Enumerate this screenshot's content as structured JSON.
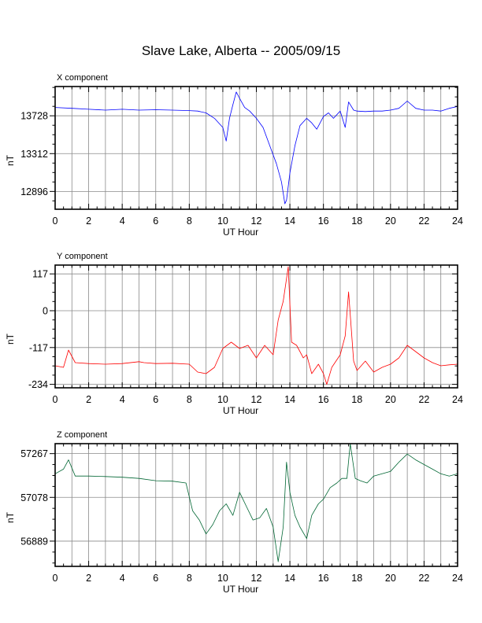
{
  "title": "Slave Lake, Alberta -- 2005/09/15",
  "chart_data": [
    {
      "type": "line",
      "panel_label": "X component",
      "color": "#0000ff",
      "xlabel": "UT Hour",
      "ylabel": "nT",
      "xlim": [
        0,
        24
      ],
      "ylim": [
        12700,
        14050
      ],
      "xticks": [
        0,
        2,
        4,
        6,
        8,
        10,
        12,
        14,
        16,
        18,
        20,
        22,
        24
      ],
      "yticks": [
        12896,
        13312,
        13728
      ],
      "series": [
        {
          "x": [
            0,
            1,
            2,
            3,
            4,
            5,
            6,
            7,
            8,
            8.5,
            9,
            9.5,
            10,
            10.2,
            10.4,
            10.6,
            10.8,
            11,
            11.3,
            11.6,
            12,
            12.4,
            12.8,
            13.2,
            13.5,
            13.7,
            13.8,
            14,
            14.3,
            14.6,
            15,
            15.3,
            15.6,
            16,
            16.3,
            16.6,
            17,
            17.3,
            17.5,
            17.8,
            18,
            18.5,
            19,
            19.5,
            20,
            20.5,
            21,
            21.5,
            22,
            22.5,
            23,
            23.5,
            24
          ],
          "y": [
            13820,
            13810,
            13800,
            13790,
            13800,
            13790,
            13795,
            13790,
            13785,
            13780,
            13760,
            13700,
            13600,
            13450,
            13700,
            13850,
            13990,
            13920,
            13820,
            13780,
            13700,
            13600,
            13400,
            13200,
            13000,
            12760,
            12800,
            13100,
            13400,
            13620,
            13700,
            13650,
            13580,
            13720,
            13760,
            13700,
            13780,
            13600,
            13880,
            13790,
            13780,
            13775,
            13780,
            13780,
            13790,
            13810,
            13890,
            13810,
            13790,
            13790,
            13780,
            13810,
            13830
          ]
        }
      ]
    },
    {
      "type": "line",
      "panel_label": "Y component",
      "color": "#ff0000",
      "xlabel": "UT Hour",
      "ylabel": "nT",
      "xlim": [
        0,
        24
      ],
      "ylim": [
        -245,
        145
      ],
      "xticks": [
        0,
        2,
        4,
        6,
        8,
        10,
        12,
        14,
        16,
        18,
        20,
        22,
        24
      ],
      "yticks": [
        -234,
        -117,
        0,
        117
      ],
      "series": [
        {
          "x": [
            0,
            0.5,
            0.8,
            1.2,
            2,
            3,
            4,
            5,
            5.3,
            6,
            7,
            8,
            8.5,
            9,
            9.5,
            10,
            10.5,
            11,
            11.5,
            12,
            12.5,
            13,
            13.3,
            13.6,
            13.9,
            14.1,
            14.4,
            14.8,
            15,
            15.3,
            15.7,
            16,
            16.2,
            16.5,
            17,
            17.3,
            17.5,
            17.8,
            18,
            18.5,
            19,
            19.5,
            20,
            20.5,
            21,
            21.5,
            22,
            22.5,
            23,
            23.5,
            24
          ],
          "y": [
            -175,
            -180,
            -125,
            -165,
            -168,
            -170,
            -168,
            -162,
            -165,
            -168,
            -167,
            -170,
            -195,
            -200,
            -180,
            -120,
            -100,
            -120,
            -110,
            -150,
            -110,
            -140,
            -30,
            30,
            140,
            -100,
            -110,
            -150,
            -140,
            -200,
            -170,
            -200,
            -234,
            -180,
            -140,
            -80,
            60,
            -160,
            -190,
            -160,
            -195,
            -180,
            -170,
            -150,
            -110,
            -130,
            -150,
            -165,
            -175,
            -172,
            -170
          ]
        }
      ]
    },
    {
      "type": "line",
      "panel_label": "Z component",
      "color": "#006633",
      "xlabel": "UT Hour",
      "ylabel": "nT",
      "xlim": [
        0,
        24
      ],
      "ylim": [
        56780,
        57310
      ],
      "xticks": [
        0,
        2,
        4,
        6,
        8,
        10,
        12,
        14,
        16,
        18,
        20,
        22,
        24
      ],
      "yticks": [
        56889,
        57078,
        57267
      ],
      "series": [
        {
          "x": [
            0,
            0.5,
            0.8,
            1.2,
            2,
            3,
            4,
            5,
            6,
            7,
            7.8,
            8.2,
            8.6,
            9,
            9.4,
            9.8,
            10.2,
            10.6,
            11,
            11.4,
            11.8,
            12.2,
            12.6,
            13,
            13.3,
            13.6,
            13.8,
            14,
            14.3,
            14.6,
            15,
            15.3,
            15.7,
            16,
            16.4,
            16.8,
            17.1,
            17.4,
            17.6,
            17.9,
            18.2,
            18.6,
            19,
            19.5,
            20,
            20.5,
            21,
            21.5,
            22,
            22.5,
            23,
            23.5,
            24
          ],
          "y": [
            57180,
            57200,
            57240,
            57170,
            57170,
            57168,
            57165,
            57160,
            57150,
            57148,
            57140,
            57020,
            56980,
            56920,
            56960,
            57020,
            57050,
            57000,
            57100,
            57040,
            56980,
            56990,
            57030,
            56950,
            56800,
            56950,
            57230,
            57100,
            57000,
            56950,
            56900,
            57000,
            57050,
            57070,
            57120,
            57140,
            57160,
            57160,
            57310,
            57160,
            57150,
            57140,
            57170,
            57180,
            57190,
            57230,
            57265,
            57240,
            57220,
            57200,
            57180,
            57170,
            57180
          ]
        }
      ]
    }
  ]
}
